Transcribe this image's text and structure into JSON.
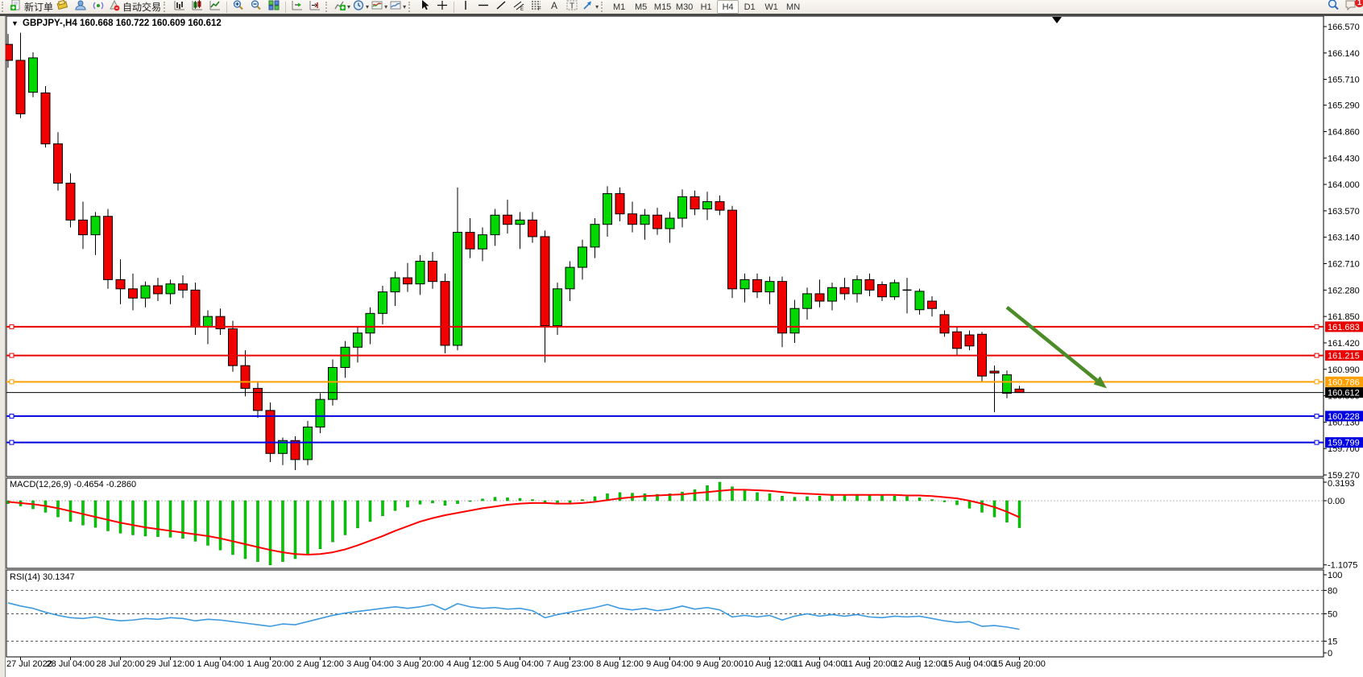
{
  "toolbar": {
    "trade_group": [
      {
        "icon": "new-order-icon",
        "label": "新订单",
        "name": "new-order-button"
      },
      {
        "icon": "chart-styler-icon",
        "label": "",
        "name": "styler-button"
      },
      {
        "icon": "profile-icon",
        "label": "",
        "name": "profile-button"
      },
      {
        "icon": "signals-icon",
        "label": "",
        "name": "signals-button"
      },
      {
        "icon": "autotrading-icon",
        "label": "自动交易",
        "name": "autotrading-button"
      }
    ],
    "chart_type_group": [
      {
        "icon": "bar-chart-icon",
        "name": "bar-chart-button"
      },
      {
        "icon": "candle-chart-icon",
        "name": "candle-chart-button"
      },
      {
        "icon": "line-chart-icon",
        "name": "line-chart-button"
      }
    ],
    "zoom_group": [
      {
        "icon": "zoom-in-icon",
        "name": "zoom-in-button"
      },
      {
        "icon": "zoom-out-icon",
        "name": "zoom-out-button"
      },
      {
        "icon": "tile-windows-icon",
        "name": "tile-windows-button"
      }
    ],
    "scroll_group": [
      {
        "icon": "auto-scroll-icon",
        "name": "auto-scroll-button"
      },
      {
        "icon": "chart-shift-icon",
        "name": "chart-shift-button"
      }
    ],
    "insert_group": [
      {
        "icon": "indicators-icon",
        "name": "indicators-button",
        "dropdown": true
      },
      {
        "icon": "periods-icon",
        "name": "periods-button",
        "dropdown": true
      },
      {
        "icon": "templates-icon",
        "name": "templates-button",
        "dropdown": true
      },
      {
        "icon": "templates2-icon",
        "name": "profiles-button",
        "dropdown": true
      }
    ],
    "cursor_group": [
      {
        "icon": "cursor-icon",
        "name": "cursor-button"
      },
      {
        "icon": "crosshair-icon",
        "name": "crosshair-button"
      }
    ],
    "draw_group": [
      {
        "icon": "vertical-line-icon",
        "name": "vertical-line-button"
      },
      {
        "icon": "horizontal-line-icon",
        "name": "horizontal-line-button"
      },
      {
        "icon": "trendline-icon",
        "name": "trendline-button"
      },
      {
        "icon": "equidistant-channel-icon",
        "name": "channel-button"
      },
      {
        "icon": "fibonacci-icon",
        "name": "fibonacci-button"
      },
      {
        "icon": "text-icon",
        "name": "text-button"
      },
      {
        "icon": "text-label-icon",
        "name": "text-label-button"
      },
      {
        "icon": "arrows-icon",
        "name": "arrows-button",
        "dropdown": true
      }
    ],
    "timeframes": [
      "M1",
      "M5",
      "M15",
      "M30",
      "H1",
      "H4",
      "D1",
      "W1",
      "MN"
    ],
    "active_timeframe": "H4",
    "right_icons": [
      {
        "icon": "search-icon",
        "name": "search-button"
      },
      {
        "icon": "notifications-icon",
        "name": "notifications-button",
        "badge": "1"
      }
    ]
  },
  "chart_data": {
    "type": "candlestick",
    "symbol": "GBPJPY-",
    "timeframe": "H4",
    "title_text": "GBPJPY-,H4",
    "ohlc_text": "160.668 160.722 160.609 160.612",
    "last_ohlc": {
      "open": 160.668,
      "high": 160.722,
      "low": 160.609,
      "close": 160.612
    },
    "colors": {
      "bull": "#00d800",
      "bear": "#f10000",
      "wick": "#000000",
      "red_line": "#e80000",
      "orange_line": "#ffa000",
      "blue_line": "#0000e0",
      "black_line": "#000000",
      "macd_hist": "#00cc00",
      "macd_signal": "#ff0000",
      "rsi_line": "#3e9adf",
      "arrow": "#4c8c28"
    },
    "price_axis_ticks": [
      166.57,
      166.14,
      165.71,
      165.29,
      164.86,
      164.43,
      164.0,
      163.57,
      163.14,
      162.71,
      162.28,
      161.85,
      161.42,
      160.99,
      160.56,
      160.13,
      159.7,
      159.27
    ],
    "price_range": [
      159.27,
      166.57
    ],
    "hlines": [
      {
        "price": 161.683,
        "label": "161.683",
        "color_key": "red_line"
      },
      {
        "price": 161.215,
        "label": "161.215",
        "color_key": "red_line"
      },
      {
        "price": 160.786,
        "label": "160.786",
        "color_key": "orange_line"
      },
      {
        "price": 160.228,
        "label": "160.228",
        "color_key": "blue_line"
      },
      {
        "price": 159.799,
        "label": "159.799",
        "color_key": "blue_line"
      }
    ],
    "current_price": {
      "value": 160.612,
      "label": "160.612",
      "color_key": "black_line"
    },
    "time_labels": [
      "27 Jul 2022",
      "28 Jul 04:00",
      "28 Jul 20:00",
      "29 Jul 12:00",
      "1 Aug 04:00",
      "1 Aug 20:00",
      "2 Aug 12:00",
      "3 Aug 04:00",
      "3 Aug 20:00",
      "4 Aug 12:00",
      "5 Aug 04:00",
      "7 Aug 23:00",
      "8 Aug 12:00",
      "9 Aug 04:00",
      "9 Aug 20:00",
      "10 Aug 12:00",
      "11 Aug 04:00",
      "11 Aug 20:00",
      "12 Aug 12:00",
      "15 Aug 04:00",
      "15 Aug 20:00"
    ],
    "label_first_candle": 1,
    "label_every": 4,
    "candles": [
      [
        166.28,
        166.45,
        165.9,
        166.02
      ],
      [
        166.02,
        166.47,
        165.08,
        165.15
      ],
      [
        165.5,
        166.15,
        165.42,
        166.06
      ],
      [
        165.49,
        165.6,
        164.6,
        164.66
      ],
      [
        164.66,
        164.85,
        163.9,
        164.02
      ],
      [
        164.02,
        164.18,
        163.3,
        163.42
      ],
      [
        163.42,
        163.72,
        162.95,
        163.18
      ],
      [
        163.18,
        163.55,
        162.85,
        163.48
      ],
      [
        163.48,
        163.6,
        162.3,
        162.45
      ],
      [
        162.45,
        162.78,
        162.05,
        162.3
      ],
      [
        162.3,
        162.55,
        161.95,
        162.15
      ],
      [
        162.15,
        162.42,
        162.0,
        162.35
      ],
      [
        162.35,
        162.48,
        162.1,
        162.22
      ],
      [
        162.22,
        162.45,
        162.05,
        162.38
      ],
      [
        162.38,
        162.52,
        162.15,
        162.28
      ],
      [
        162.28,
        162.4,
        161.55,
        161.68
      ],
      [
        161.68,
        161.95,
        161.4,
        161.85
      ],
      [
        161.85,
        161.98,
        161.55,
        161.65
      ],
      [
        161.65,
        161.78,
        160.95,
        161.05
      ],
      [
        161.05,
        161.3,
        160.55,
        160.68
      ],
      [
        160.68,
        160.8,
        160.2,
        160.32
      ],
      [
        160.32,
        160.45,
        159.48,
        159.62
      ],
      [
        159.62,
        159.88,
        159.43,
        159.83
      ],
      [
        159.83,
        159.9,
        159.35,
        159.52
      ],
      [
        159.52,
        160.15,
        159.43,
        160.05
      ],
      [
        160.05,
        160.6,
        159.95,
        160.5
      ],
      [
        160.5,
        161.15,
        160.4,
        161.02
      ],
      [
        161.02,
        161.45,
        160.85,
        161.35
      ],
      [
        161.35,
        161.68,
        161.1,
        161.58
      ],
      [
        161.58,
        162.0,
        161.4,
        161.9
      ],
      [
        161.9,
        162.35,
        161.72,
        162.25
      ],
      [
        162.25,
        162.58,
        162.02,
        162.48
      ],
      [
        162.48,
        162.72,
        162.25,
        162.38
      ],
      [
        162.38,
        162.85,
        162.2,
        162.75
      ],
      [
        162.75,
        162.9,
        162.3,
        162.42
      ],
      [
        162.42,
        162.55,
        161.25,
        161.38
      ],
      [
        161.38,
        163.95,
        161.3,
        163.22
      ],
      [
        163.22,
        163.45,
        162.8,
        162.95
      ],
      [
        162.95,
        163.3,
        162.75,
        163.18
      ],
      [
        163.18,
        163.6,
        163.0,
        163.5
      ],
      [
        163.5,
        163.75,
        163.2,
        163.35
      ],
      [
        163.35,
        163.55,
        162.95,
        163.42
      ],
      [
        163.42,
        163.55,
        163.05,
        163.15
      ],
      [
        163.15,
        163.25,
        161.1,
        161.7
      ],
      [
        161.7,
        162.4,
        161.55,
        162.3
      ],
      [
        162.3,
        162.75,
        162.1,
        162.65
      ],
      [
        162.65,
        163.1,
        162.45,
        162.98
      ],
      [
        162.98,
        163.45,
        162.8,
        163.35
      ],
      [
        163.35,
        163.97,
        163.15,
        163.85
      ],
      [
        163.85,
        163.95,
        163.4,
        163.52
      ],
      [
        163.52,
        163.72,
        163.22,
        163.35
      ],
      [
        163.35,
        163.6,
        163.1,
        163.5
      ],
      [
        163.5,
        163.62,
        163.18,
        163.28
      ],
      [
        163.28,
        163.55,
        163.05,
        163.45
      ],
      [
        163.45,
        163.92,
        163.3,
        163.8
      ],
      [
        163.8,
        163.9,
        163.5,
        163.6
      ],
      [
        163.6,
        163.88,
        163.42,
        163.72
      ],
      [
        163.72,
        163.82,
        163.5,
        163.58
      ],
      [
        163.58,
        163.65,
        162.15,
        162.3
      ],
      [
        162.3,
        162.55,
        162.08,
        162.45
      ],
      [
        162.45,
        162.55,
        162.15,
        162.25
      ],
      [
        162.25,
        162.5,
        162.05,
        162.42
      ],
      [
        162.42,
        162.5,
        161.35,
        161.58
      ],
      [
        161.58,
        162.12,
        161.42,
        161.98
      ],
      [
        161.98,
        162.32,
        161.8,
        162.22
      ],
      [
        162.22,
        162.45,
        162.0,
        162.1
      ],
      [
        162.1,
        162.4,
        161.95,
        162.32
      ],
      [
        162.32,
        162.48,
        162.12,
        162.22
      ],
      [
        162.22,
        162.52,
        162.08,
        162.45
      ],
      [
        162.45,
        162.55,
        162.18,
        162.28
      ],
      [
        162.37,
        162.42,
        162.1,
        162.17
      ],
      [
        162.17,
        162.45,
        162.12,
        162.4
      ],
      [
        162.27,
        162.48,
        161.9,
        162.28
      ],
      [
        161.96,
        162.3,
        161.88,
        162.26
      ],
      [
        162.1,
        162.18,
        161.85,
        161.98
      ],
      [
        161.88,
        161.95,
        161.52,
        161.58
      ],
      [
        161.6,
        161.68,
        161.22,
        161.33
      ],
      [
        161.55,
        161.62,
        161.3,
        161.37
      ],
      [
        161.56,
        161.6,
        160.78,
        160.88
      ],
      [
        160.96,
        161.05,
        160.29,
        160.93
      ],
      [
        160.6,
        160.97,
        160.52,
        160.9
      ],
      [
        160.668,
        160.722,
        160.609,
        160.612
      ]
    ],
    "arrow_annotation": {
      "from_index": 80,
      "from_price": 162.0,
      "to_index": 88,
      "to_price": 160.68
    },
    "macd": {
      "label": "MACD(12,26,9)",
      "values_text": "-0.4654 -0.2860",
      "main_value": -0.4654,
      "signal_value": -0.286,
      "axis_ticks": [
        0.3193,
        0.0,
        -1.1075
      ],
      "range": [
        -1.1075,
        0.3193
      ],
      "hist": [
        -0.05,
        -0.09,
        -0.14,
        -0.2,
        -0.28,
        -0.36,
        -0.42,
        -0.46,
        -0.52,
        -0.56,
        -0.59,
        -0.61,
        -0.62,
        -0.63,
        -0.65,
        -0.7,
        -0.77,
        -0.85,
        -0.93,
        -1.0,
        -1.05,
        -1.1075,
        -1.05,
        -1.0,
        -0.93,
        -0.83,
        -0.71,
        -0.59,
        -0.47,
        -0.36,
        -0.26,
        -0.17,
        -0.11,
        -0.06,
        -0.04,
        -0.08,
        -0.05,
        0.0,
        0.03,
        0.06,
        0.05,
        0.04,
        0.02,
        -0.04,
        -0.06,
        -0.03,
        0.02,
        0.07,
        0.12,
        0.14,
        0.13,
        0.12,
        0.11,
        0.12,
        0.15,
        0.19,
        0.26,
        0.3193,
        0.24,
        0.18,
        0.14,
        0.12,
        0.08,
        0.06,
        0.07,
        0.08,
        0.09,
        0.1,
        0.11,
        0.1,
        0.09,
        0.08,
        0.07,
        0.05,
        0.02,
        -0.02,
        -0.07,
        -0.13,
        -0.2,
        -0.28,
        -0.37,
        -0.4654
      ],
      "signal": [
        -0.02,
        -0.04,
        -0.06,
        -0.09,
        -0.13,
        -0.18,
        -0.23,
        -0.28,
        -0.33,
        -0.38,
        -0.42,
        -0.46,
        -0.49,
        -0.52,
        -0.55,
        -0.58,
        -0.61,
        -0.65,
        -0.7,
        -0.75,
        -0.8,
        -0.85,
        -0.89,
        -0.92,
        -0.93,
        -0.92,
        -0.89,
        -0.84,
        -0.77,
        -0.69,
        -0.61,
        -0.52,
        -0.44,
        -0.36,
        -0.3,
        -0.25,
        -0.21,
        -0.17,
        -0.13,
        -0.1,
        -0.07,
        -0.05,
        -0.04,
        -0.04,
        -0.05,
        -0.05,
        -0.04,
        -0.02,
        0.01,
        0.04,
        0.06,
        0.08,
        0.09,
        0.1,
        0.11,
        0.13,
        0.15,
        0.17,
        0.19,
        0.19,
        0.18,
        0.17,
        0.15,
        0.13,
        0.12,
        0.11,
        0.1,
        0.1,
        0.1,
        0.1,
        0.1,
        0.1,
        0.09,
        0.09,
        0.08,
        0.06,
        0.04,
        0.0,
        -0.05,
        -0.11,
        -0.19,
        -0.286
      ]
    },
    "rsi": {
      "label": "RSI(14)",
      "value_text": "30.1347",
      "value": 30.1347,
      "axis_ticks": [
        100,
        80,
        50,
        15,
        0
      ],
      "dashed_levels": [
        80,
        50,
        15
      ],
      "range": [
        0,
        100
      ],
      "series": [
        64,
        60,
        57,
        52,
        48,
        45,
        44,
        46,
        43,
        41,
        42,
        44,
        43,
        45,
        44,
        41,
        43,
        42,
        40,
        38,
        36,
        34,
        37,
        36,
        40,
        44,
        48,
        51,
        53,
        55,
        57,
        59,
        57,
        59,
        62,
        55,
        63,
        59,
        57,
        58,
        56,
        57,
        54,
        45,
        49,
        52,
        55,
        58,
        62,
        57,
        55,
        57,
        54,
        56,
        60,
        56,
        58,
        55,
        46,
        48,
        46,
        48,
        42,
        47,
        50,
        47,
        49,
        47,
        49,
        46,
        45,
        47,
        46,
        47,
        44,
        41,
        39,
        40,
        34,
        35,
        33,
        30.13
      ]
    }
  }
}
